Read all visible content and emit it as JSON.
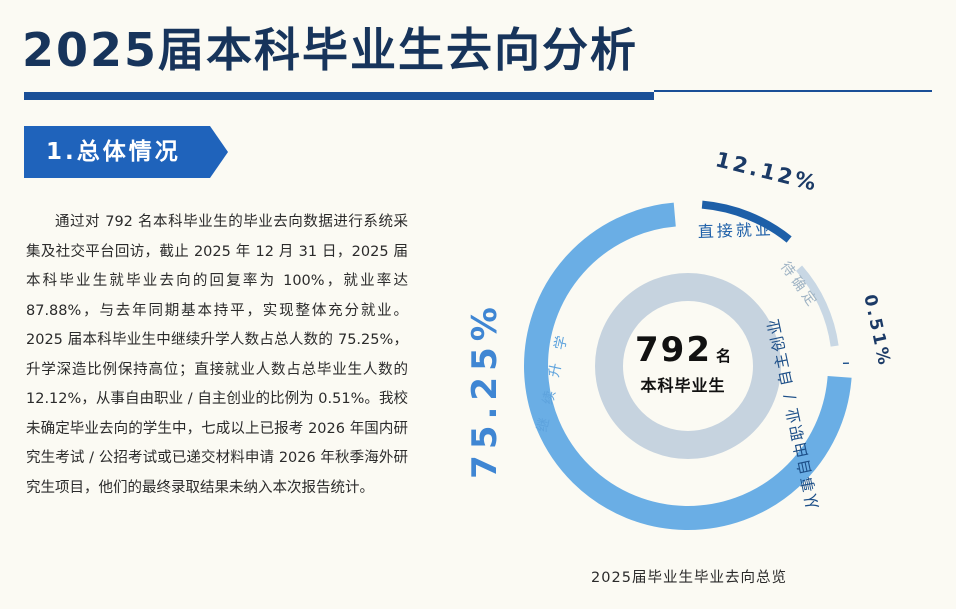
{
  "header": {
    "title": "2025届本科毕业生去向分析"
  },
  "section": {
    "label": "1.总体情况"
  },
  "body": {
    "paragraph": "通过对 792 名本科毕业生的毕业去向数据进行系统采集及社交平台回访，截止 2025 年 12 月 31 日，2025 届本科毕业生就毕业去向的回复率为 100%，就业率达 87.88%，与去年同期基本持平，实现整体充分就业。2025 届本科毕业生中继续升学人数占总人数的 75.25%，升学深造比例保持高位；直接就业人数占总毕业生人数的 12.12%，从事自由职业 / 自主创业的比例为 0.51%。我校未确定毕业去向的学生中，七成以上已报考 2026 年国内研究生考试 / 公招考试或已递交材料申请 2026 年秋季海外研究生项目，他们的最终录取结果未纳入本次报告统计。"
  },
  "chart_data": {
    "type": "pie",
    "title": "2025届毕业生毕业去向总览",
    "center_value": "792",
    "center_unit": "名",
    "center_label": "本科毕业生",
    "slices": [
      {
        "name": "继续升学",
        "value": 75.25,
        "label": "75.25%",
        "color": "#6aaee5"
      },
      {
        "name": "直接就业",
        "value": 12.12,
        "label": "12.12%",
        "color": "#1d5fa8"
      },
      {
        "name": "待确定",
        "value": 12.12,
        "label": "",
        "color": "#c8d7e4"
      },
      {
        "name": "从事自由职业 / 自主创业",
        "value": 0.51,
        "label": "0.51%",
        "color": "#184d8a"
      }
    ]
  },
  "colors": {
    "title": "#17345b",
    "accent": "#1f63bb",
    "inner_ring": "#c6d3df"
  }
}
